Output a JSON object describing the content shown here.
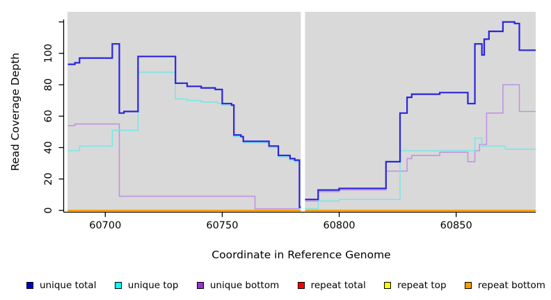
{
  "axes": {
    "x_title": "Coordinate in Reference Genome",
    "y_title": "Read Coverage Depth",
    "x_ticks": [
      60700,
      60750,
      60800,
      60850
    ],
    "y_ticks": [
      {
        "v": 0,
        "label": "0"
      },
      {
        "v": 20,
        "label": "20"
      },
      {
        "v": 40,
        "label": "40"
      },
      {
        "v": 60,
        "label": "60"
      },
      {
        "v": 80,
        "label": "80"
      },
      {
        "v": 100,
        "label": "100"
      },
      {
        "v": 120,
        "label": ""
      }
    ]
  },
  "panel": {
    "background": "#d9d9d9",
    "gap_stripe_x": [
      60783.6,
      60785.4
    ],
    "gap_color": "#ffffff"
  },
  "legend": {
    "items": [
      {
        "label": "unique total",
        "color": "#0000cd"
      },
      {
        "label": "unique top",
        "color": "#00ffff"
      },
      {
        "label": "unique bottom",
        "color": "#9932cc"
      },
      {
        "label": "repeat total",
        "color": "#ff0000"
      },
      {
        "label": "repeat top",
        "color": "#ffff00"
      },
      {
        "label": "repeat bottom",
        "color": "#ff9d00"
      }
    ]
  },
  "chart_data": {
    "type": "line",
    "style": "step",
    "xlabel": "Coordinate in Reference Genome",
    "ylabel": "Read Coverage Depth",
    "xlim": [
      60684,
      60884
    ],
    "ylim": [
      0,
      126
    ],
    "grid": false,
    "legend_position": "bottom",
    "series": [
      {
        "name": "repeat total",
        "color": "#ff0000",
        "width": 2,
        "points": [
          [
            60684,
            0
          ],
          [
            60884,
            0
          ]
        ]
      },
      {
        "name": "repeat top",
        "color": "#ffff00",
        "width": 2,
        "points": [
          [
            60684,
            0
          ],
          [
            60884,
            0
          ]
        ]
      },
      {
        "name": "unique bottom",
        "color": "#c093e0",
        "width": 1.6,
        "points": [
          [
            60684,
            54
          ],
          [
            60687,
            55
          ],
          [
            60706,
            9
          ],
          [
            60764,
            1
          ],
          [
            60785,
            6
          ],
          [
            60791,
            12
          ],
          [
            60800,
            13
          ],
          [
            60820,
            25
          ],
          [
            60829,
            33
          ],
          [
            60831,
            35
          ],
          [
            60843,
            37
          ],
          [
            60855,
            31
          ],
          [
            60858,
            38
          ],
          [
            60860,
            42
          ],
          [
            60863,
            62
          ],
          [
            60870,
            80
          ],
          [
            60877,
            63
          ],
          [
            60884,
            63
          ]
        ]
      },
      {
        "name": "unique top",
        "color": "#7ae6e6",
        "width": 1.6,
        "points": [
          [
            60684,
            38
          ],
          [
            60689,
            41
          ],
          [
            60703,
            51
          ],
          [
            60714,
            88
          ],
          [
            60730,
            71
          ],
          [
            60735,
            70
          ],
          [
            60741,
            69
          ],
          [
            60748,
            68
          ],
          [
            60750,
            67
          ],
          [
            60755,
            47
          ],
          [
            60759,
            43
          ],
          [
            60770,
            40
          ],
          [
            60774,
            34
          ],
          [
            60779,
            32
          ],
          [
            60781,
            31
          ],
          [
            60783,
            1
          ],
          [
            60791,
            6
          ],
          [
            60800,
            7
          ],
          [
            60826,
            38
          ],
          [
            60858,
            46
          ],
          [
            60861,
            41
          ],
          [
            60871,
            39
          ],
          [
            60884,
            39
          ]
        ]
      },
      {
        "name": "unique total",
        "color": "#2a23dd",
        "width": 2.2,
        "points": [
          [
            60684,
            93
          ],
          [
            60687,
            94
          ],
          [
            60689,
            97
          ],
          [
            60703,
            106
          ],
          [
            60706,
            62
          ],
          [
            60708,
            63
          ],
          [
            60714,
            98
          ],
          [
            60730,
            81
          ],
          [
            60735,
            79
          ],
          [
            60741,
            78
          ],
          [
            60747,
            77
          ],
          [
            60750,
            68
          ],
          [
            60754,
            67
          ],
          [
            60755,
            48
          ],
          [
            60758,
            47
          ],
          [
            60759,
            44
          ],
          [
            60770,
            41
          ],
          [
            60774,
            35
          ],
          [
            60779,
            33
          ],
          [
            60781,
            32
          ],
          [
            60783,
            2
          ],
          [
            60785,
            7
          ],
          [
            60791,
            13
          ],
          [
            60800,
            14
          ],
          [
            60820,
            31
          ],
          [
            60826,
            62
          ],
          [
            60829,
            72
          ],
          [
            60831,
            74
          ],
          [
            60843,
            75
          ],
          [
            60855,
            68
          ],
          [
            60858,
            106
          ],
          [
            60861,
            99
          ],
          [
            60862,
            109
          ],
          [
            60864,
            114
          ],
          [
            60870,
            120
          ],
          [
            60875,
            119
          ],
          [
            60877,
            102
          ],
          [
            60884,
            102
          ]
        ]
      },
      {
        "name": "repeat bottom",
        "color": "#ff9d00",
        "width": 2,
        "points": [
          [
            60684,
            0
          ],
          [
            60884,
            0
          ]
        ]
      }
    ]
  }
}
